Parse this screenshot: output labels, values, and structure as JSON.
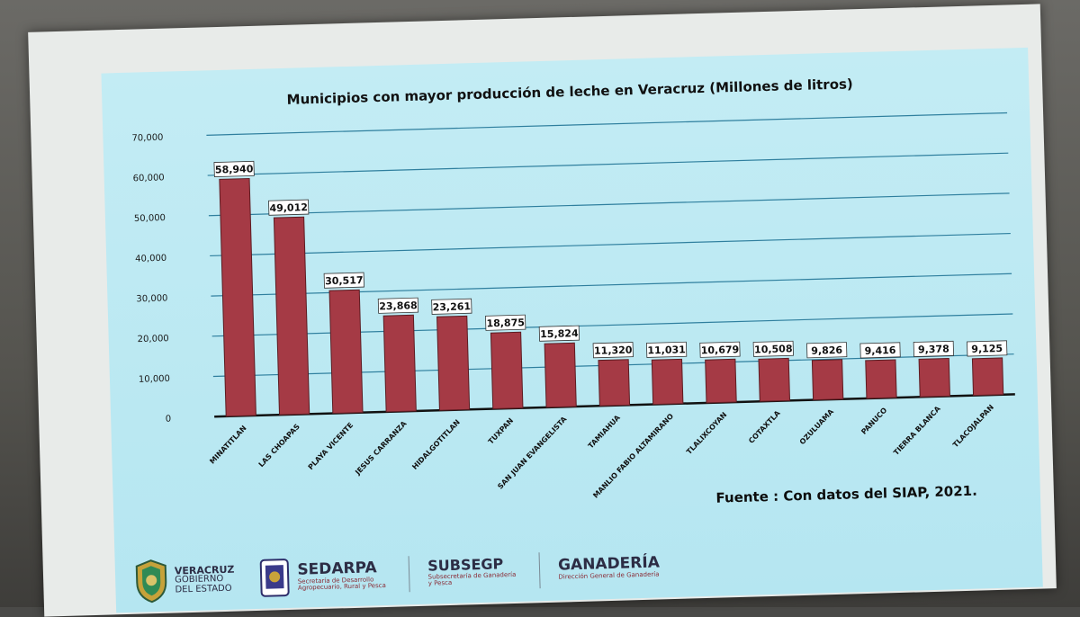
{
  "chart_data": {
    "type": "bar",
    "title": "Municipios con mayor producción de leche en Veracruz (Millones de litros)",
    "categories": [
      "MINATITLAN",
      "LAS CHOAPAS",
      "PLAYA VICENTE",
      "JESUS CARRANZA",
      "HIDALGOTITLAN",
      "TUXPAN",
      "SAN JUAN EVANGELISTA",
      "TAMIAHUA",
      "MANLIO FABIO ALTAMIRANO",
      "TLALIXCOYAN",
      "COTAXTLA",
      "OZULUAMA",
      "PANUCO",
      "TIERRA BLANCA",
      "TLACOJALPAN"
    ],
    "values": [
      58940,
      49012,
      30517,
      23868,
      23261,
      18875,
      15824,
      11320,
      11031,
      10679,
      10508,
      9826,
      9416,
      9378,
      9125
    ],
    "value_labels": [
      "58,940",
      "49,012",
      "30,517",
      "23,868",
      "23,261",
      "18,875",
      "15,824",
      "11,320",
      "11,031",
      "10,679",
      "10,508",
      "9,826",
      "9,416",
      "9,378",
      "9,125"
    ],
    "y_ticks": [
      0,
      10000,
      20000,
      30000,
      40000,
      50000,
      60000,
      70000
    ],
    "y_tick_labels": [
      "0",
      "10,000",
      "20,000",
      "30,000",
      "40,000",
      "50,000",
      "60,000",
      "70,000"
    ],
    "ylim": [
      0,
      70000
    ],
    "grid": true,
    "bar_color": "#a53a45",
    "source": "Fuente : Con datos del  SIAP, 2021."
  },
  "footer": {
    "veracruz": {
      "name": "VERACRUZ",
      "line1": "GOBIERNO",
      "line2": "DEL ESTADO"
    },
    "sedarpa": {
      "name": "SEDARPA",
      "sub1": "Secretaría de Desarrollo",
      "sub2": "Agropecuario, Rural y Pesca"
    },
    "subsegp": {
      "name": "SUBSEGP",
      "sub1": "Subsecretaría de Ganadería",
      "sub2": "y Pesca"
    },
    "ganaderia": {
      "name": "GANADERÍA",
      "sub1": "Dirección General de Ganadería"
    }
  },
  "colors": {
    "slide_bg": "#bde9f3",
    "gridline": "#2f7f9e",
    "baseline": "#111111"
  }
}
